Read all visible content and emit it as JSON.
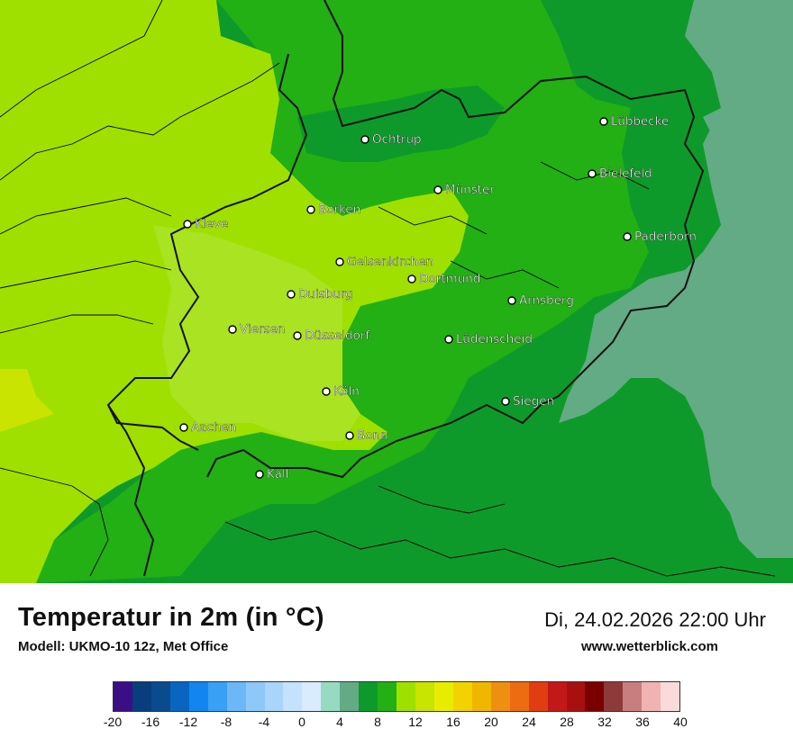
{
  "map": {
    "colors": {
      "lightest": "#9fe000",
      "light": "#b3e63c",
      "yellow": "#c8e400",
      "mid": "#22b014",
      "dark": "#0e9a2a",
      "teal": "#62ab84",
      "border": "#111111",
      "outline": "#000000"
    },
    "cities": [
      {
        "name": "Ochtrup"
      },
      {
        "name": "Lübbecke"
      },
      {
        "name": "Münster"
      },
      {
        "name": "Bielefeld"
      },
      {
        "name": "Borken"
      },
      {
        "name": "Kleve"
      },
      {
        "name": "Paderborn"
      },
      {
        "name": "Gelsenkirchen"
      },
      {
        "name": "Dortmund"
      },
      {
        "name": "Duisburg"
      },
      {
        "name": "Arnsberg"
      },
      {
        "name": "Viersen"
      },
      {
        "name": "Düsseldorf"
      },
      {
        "name": "Lüdenscheid"
      },
      {
        "name": "Köln"
      },
      {
        "name": "Siegen"
      },
      {
        "name": "Aachen"
      },
      {
        "name": "Bonn"
      },
      {
        "name": "Kall"
      }
    ]
  },
  "footer": {
    "title": "Temperatur in 2m (in °C)",
    "model": "Modell: UKMO-10 12z, Met Office",
    "datetime": "Di, 24.02.2026 22:00 Uhr",
    "site": "www.wetterblick.com"
  },
  "legend": {
    "colors": [
      "#3a0f86",
      "#083e7e",
      "#0a4b8e",
      "#0866c2",
      "#1285f0",
      "#3aa0f5",
      "#6cb8f7",
      "#8dc8f9",
      "#a9d5fb",
      "#c5e2fc",
      "#d8ecfd",
      "#96dbc1",
      "#62ab84",
      "#0e9a2a",
      "#22b014",
      "#9fe000",
      "#c8e400",
      "#e8ed00",
      "#f2d200",
      "#f0b600",
      "#ef8f12",
      "#ed6c12",
      "#e03e10",
      "#c21818",
      "#a81010",
      "#7a0000",
      "#8e3a3a",
      "#c87e7e",
      "#f1b2b2",
      "#fbdada"
    ],
    "ticks": [
      "-20",
      "-16",
      "-12",
      "-8",
      "-4",
      "0",
      "4",
      "8",
      "12",
      "16",
      "20",
      "24",
      "28",
      "32",
      "36",
      "40"
    ]
  }
}
